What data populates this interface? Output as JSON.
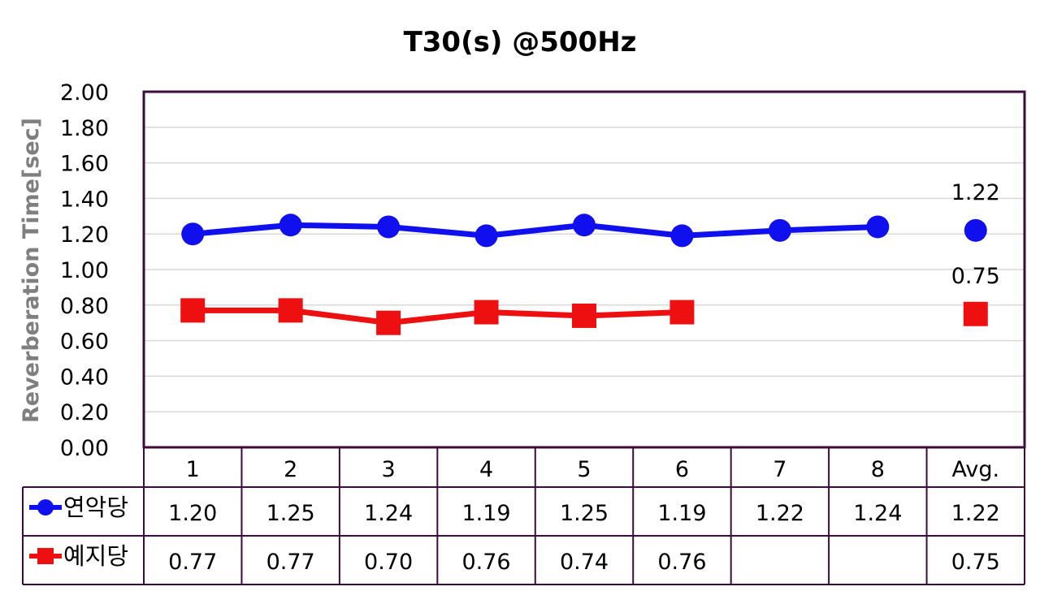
{
  "chart_data": {
    "type": "line",
    "title": "T30(s) @500Hz",
    "ylabel": "Reverberation Time[sec]",
    "xlabel": "",
    "ylim": [
      0,
      2
    ],
    "yticks": [
      "0.00",
      "0.20",
      "0.40",
      "0.60",
      "0.80",
      "1.00",
      "1.20",
      "1.40",
      "1.60",
      "1.80",
      "2.00"
    ],
    "categories": [
      "1",
      "2",
      "3",
      "4",
      "5",
      "6",
      "7",
      "8",
      "Avg."
    ],
    "grid": true,
    "legend": "data table below plot",
    "series": [
      {
        "name": "연악당",
        "color": "#1010ee",
        "marker": "circle",
        "values": [
          1.2,
          1.25,
          1.24,
          1.19,
          1.25,
          1.19,
          1.22,
          1.24,
          1.22
        ],
        "table_values": [
          "1.20",
          "1.25",
          "1.24",
          "1.19",
          "1.25",
          "1.19",
          "1.22",
          "1.24",
          "1.22"
        ],
        "avg_label": "1.22"
      },
      {
        "name": "예지당",
        "color": "#ee1010",
        "marker": "square",
        "values": [
          0.77,
          0.77,
          0.7,
          0.76,
          0.74,
          0.76,
          null,
          null,
          0.75
        ],
        "table_values": [
          "0.77",
          "0.77",
          "0.70",
          "0.76",
          "0.74",
          "0.76",
          "",
          "",
          "0.75"
        ],
        "avg_label": "0.75"
      }
    ]
  }
}
